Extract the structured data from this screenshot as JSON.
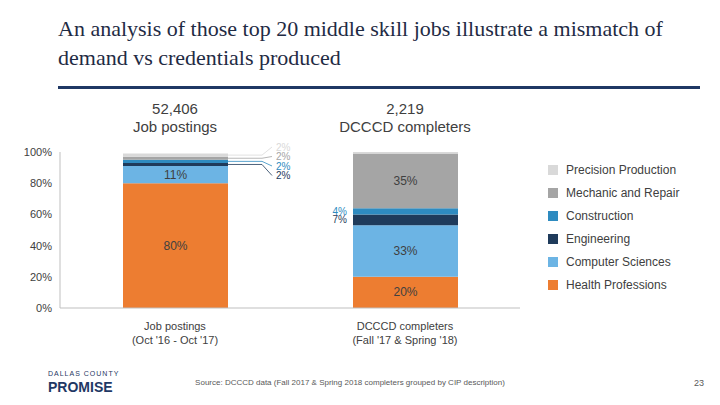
{
  "chart_data": {
    "type": "bar",
    "title": "An analysis of those top 20 middle skill jobs illustrate a mismatch of demand vs credentials produced",
    "column_headers": [
      "52,406 Job postings",
      "2,219 DCCCD completers"
    ],
    "categories": [
      "Job postings (Oct '16 - Oct '17)",
      "DCCCD completers (Fall '17 & Spring '18)"
    ],
    "series": [
      {
        "name": "Health Professions",
        "color": "#ED7D31",
        "values": [
          80,
          20
        ],
        "value_labels": [
          "80%",
          "20%"
        ]
      },
      {
        "name": "Computer Sciences",
        "color": "#6CB4E4",
        "values": [
          11,
          33
        ],
        "value_labels": [
          "11%",
          "33%"
        ]
      },
      {
        "name": "Engineering",
        "color": "#1F3B5B",
        "values": [
          2,
          7
        ],
        "value_labels": [
          "2%",
          "7%"
        ]
      },
      {
        "name": "Construction",
        "color": "#2E8BC0",
        "values": [
          2,
          4
        ],
        "value_labels": [
          "2%",
          "4%"
        ]
      },
      {
        "name": "Mechanic and Repair",
        "color": "#A5A5A5",
        "values": [
          2,
          35
        ],
        "value_labels": [
          "2%",
          "35%"
        ]
      },
      {
        "name": "Precision Production",
        "color": "#D9D9D9",
        "values": [
          2,
          1
        ],
        "value_labels": [
          "2%",
          null
        ]
      }
    ],
    "ylim": [
      0,
      100
    ],
    "yticks": [
      {
        "value": 0,
        "label": "0%"
      },
      {
        "value": 20,
        "label": "20%"
      },
      {
        "value": 40,
        "label": "40%"
      },
      {
        "value": 60,
        "label": "60%"
      },
      {
        "value": 80,
        "label": "80%"
      },
      {
        "value": 100,
        "label": "100%"
      }
    ],
    "stacked": true,
    "data_labels": true,
    "grid": false,
    "legend": "right",
    "source": "Source: DCCCD data (Fall 2017 & Spring 2018 completers grouped by CIP description)",
    "page_number": "23",
    "logo_text": "DALLAS COUNTY PROMISE"
  }
}
